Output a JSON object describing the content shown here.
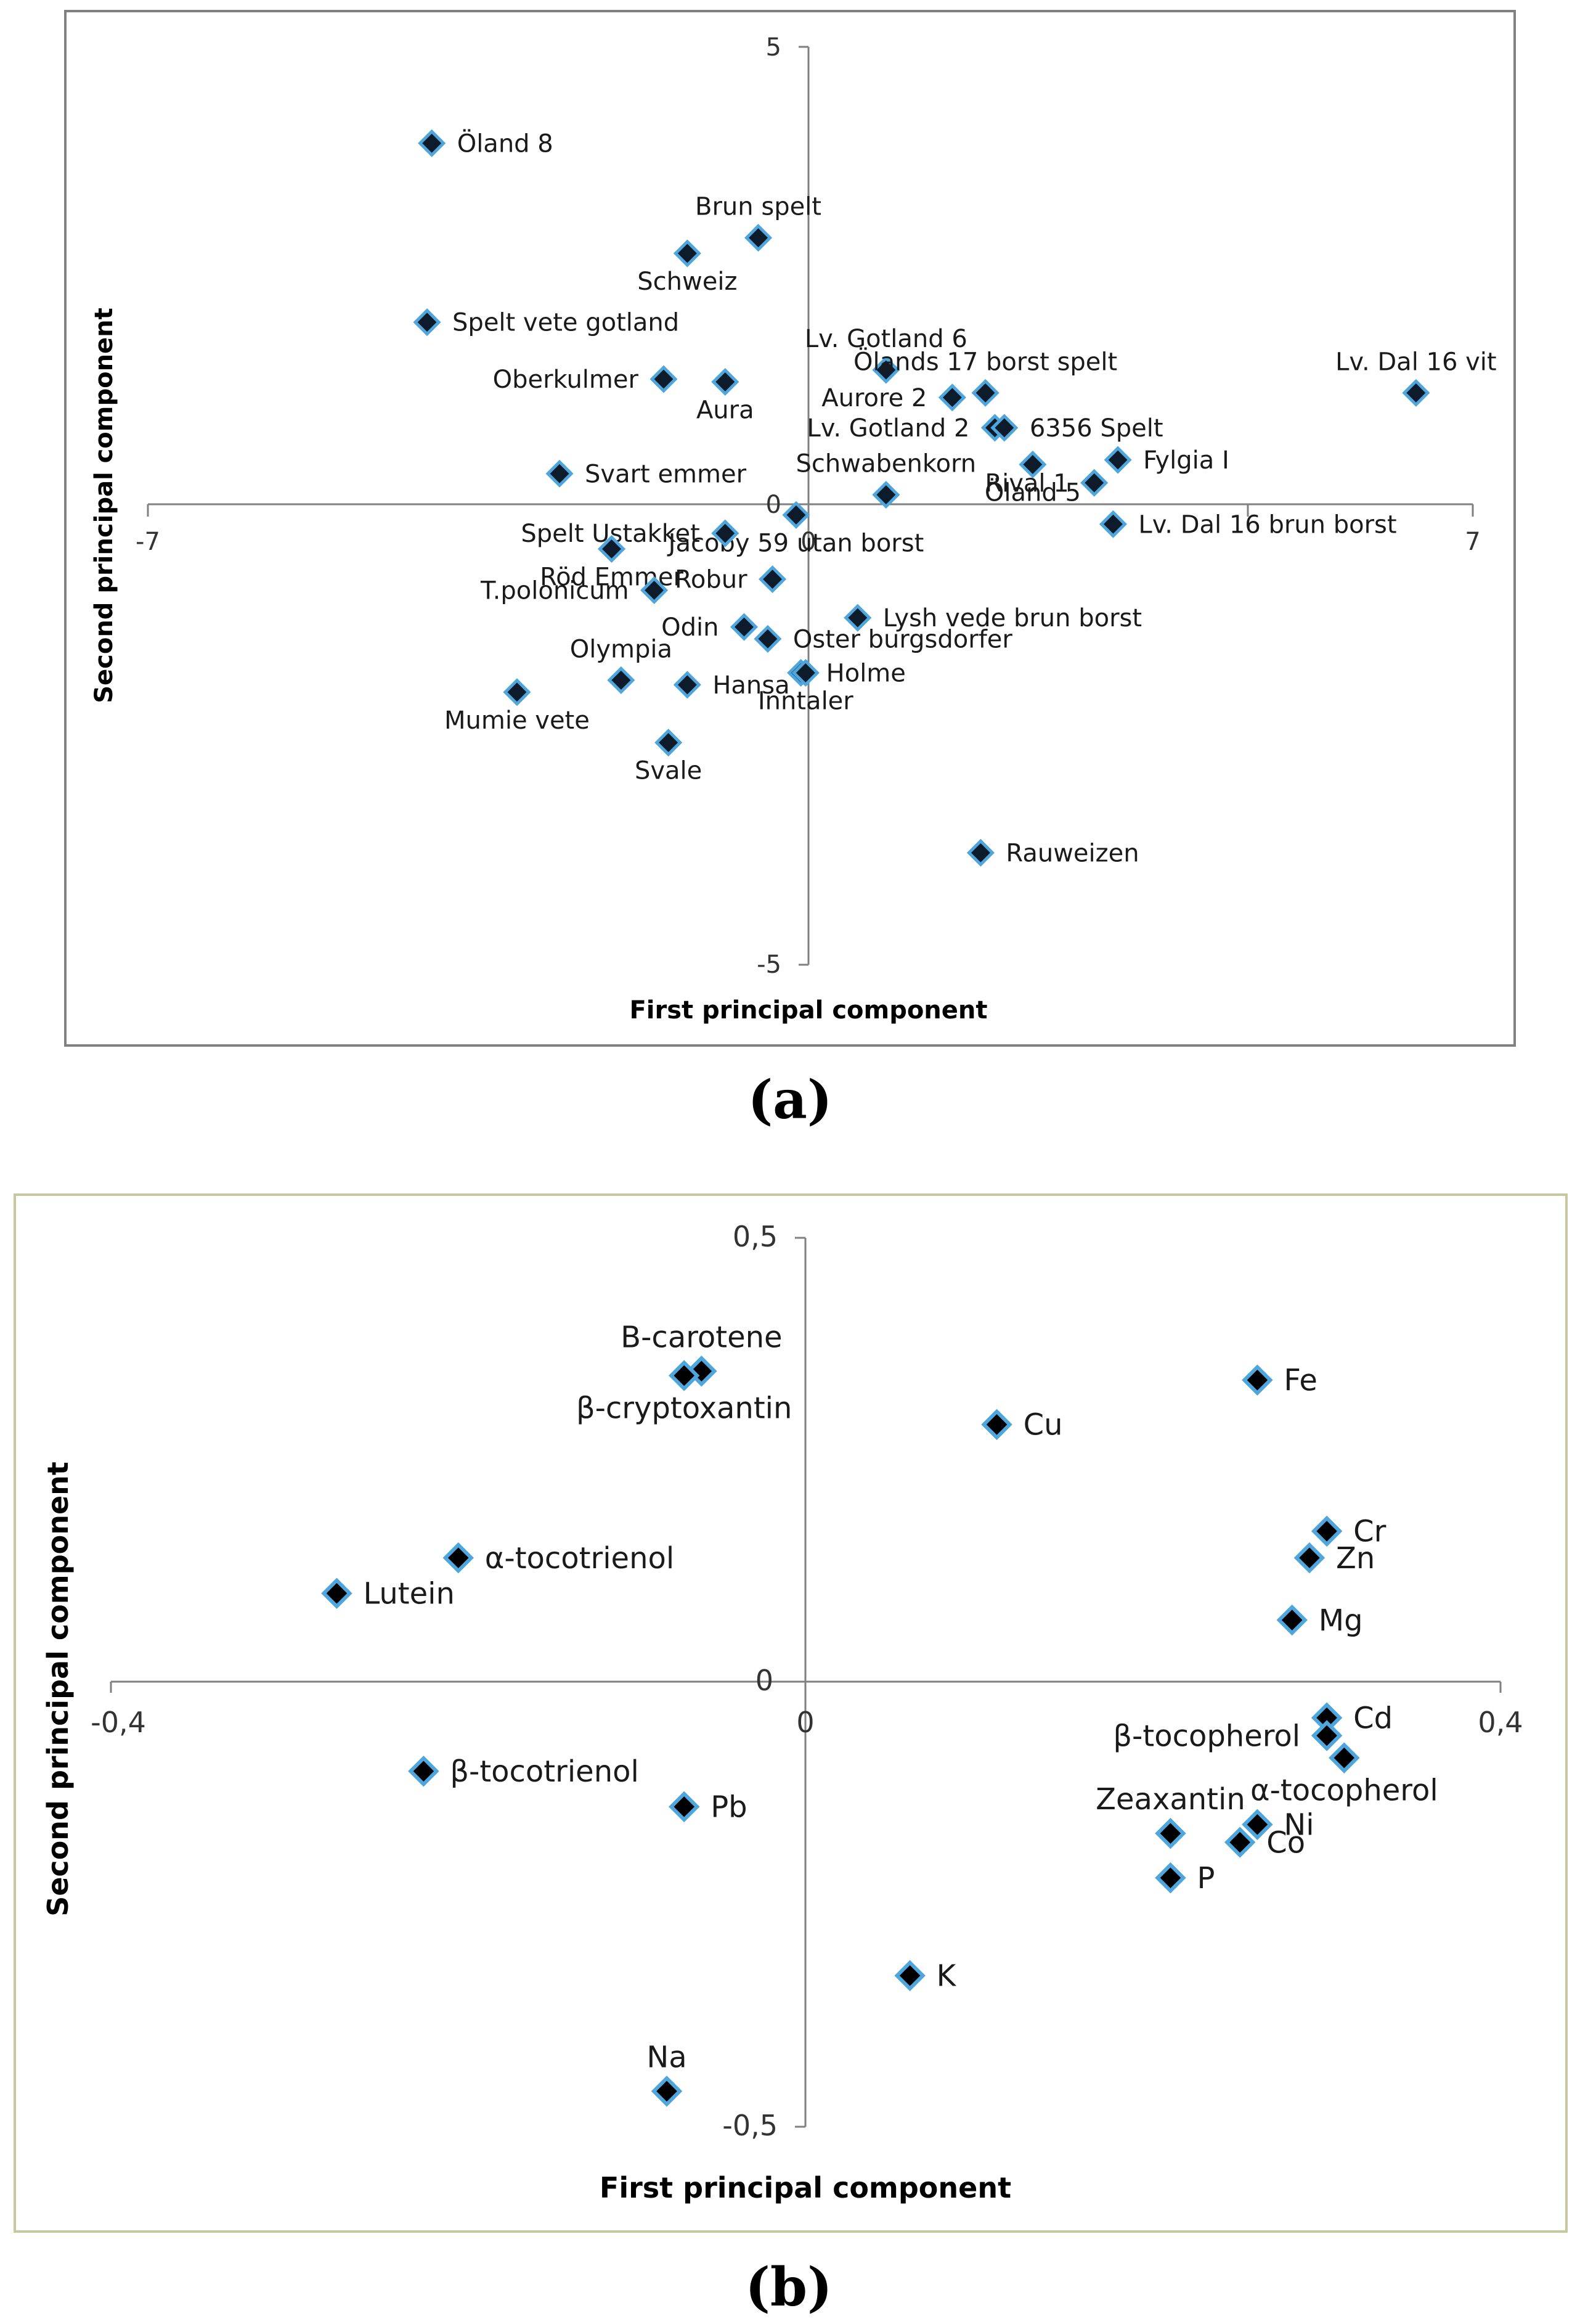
{
  "figure": {
    "caption_a": "(a)",
    "caption_b": "(b)"
  },
  "chart_data": [
    {
      "type": "scatter",
      "title": "",
      "xlabel": "First principal component",
      "ylabel": "Second principal component",
      "xlim": [
        -7,
        7
      ],
      "ylim": [
        -5,
        5
      ],
      "xticks": [
        "-7",
        "0",
        "7"
      ],
      "yticks": [
        "5",
        "0",
        "-5"
      ],
      "points": [
        {
          "label": "Öland 8",
          "x": -4.0,
          "y": 3.95
        },
        {
          "label": "Brun spelt",
          "x": -0.55,
          "y": 2.92
        },
        {
          "label": "Schweiz",
          "x": -1.3,
          "y": 2.75
        },
        {
          "label": "Spelt vete gotland",
          "x": -4.05,
          "y": 2.0
        },
        {
          "label": "Lv. Gotland 6",
          "x": 0.8,
          "y": 1.48
        },
        {
          "label": "Ölands 17 borst spelt",
          "x": 1.85,
          "y": 1.23
        },
        {
          "label": "Lv. Dal 16 vit",
          "x": 6.4,
          "y": 1.23
        },
        {
          "label": "Oberkulmer",
          "x": -1.55,
          "y": 1.38
        },
        {
          "label": "Aura",
          "x": -0.9,
          "y": 1.35
        },
        {
          "label": "Aurore 2",
          "x": 1.5,
          "y": 1.18
        },
        {
          "label": "Lv. Gotland 2",
          "x": 1.95,
          "y": 0.85
        },
        {
          "label": "6356 Spelt",
          "x": 2.05,
          "y": 0.85
        },
        {
          "label": "Fylgia I",
          "x": 3.25,
          "y": 0.5
        },
        {
          "label": "Svart emmer",
          "x": -2.65,
          "y": 0.35
        },
        {
          "label": "Rival 1",
          "x": 3.0,
          "y": 0.25
        },
        {
          "label": "Schwabenkorn",
          "x": 0.8,
          "y": 0.12
        },
        {
          "label": "Lv. Dal 16 brun borst",
          "x": 3.2,
          "y": -0.2
        },
        {
          "label": "Jacoby 59 utan borst",
          "x": -0.15,
          "y": -0.1
        },
        {
          "label": "Öland 5",
          "x": 2.35,
          "y": 0.45
        },
        {
          "label": "Spelt Ustakket",
          "x": -0.9,
          "y": -0.3
        },
        {
          "label": "Röd Emmer",
          "x": -2.1,
          "y": -0.47
        },
        {
          "label": "Robur",
          "x": -0.4,
          "y": -0.8
        },
        {
          "label": "T.polonicum",
          "x": -1.65,
          "y": -0.92
        },
        {
          "label": "Lysh vede brun borst",
          "x": 0.5,
          "y": -1.22
        },
        {
          "label": "Odin",
          "x": -0.7,
          "y": -1.32
        },
        {
          "label": "Oster burgsdorfer",
          "x": -0.45,
          "y": -1.45
        },
        {
          "label": "Olympia",
          "x": -2.0,
          "y": -1.9
        },
        {
          "label": "Holme",
          "x": -0.1,
          "y": -1.82
        },
        {
          "label": "Hansa",
          "x": -1.3,
          "y": -1.95
        },
        {
          "label": "Mumie vete",
          "x": -3.1,
          "y": -2.03
        },
        {
          "label": "Inntaler",
          "x": -0.05,
          "y": -1.82
        },
        {
          "label": "Svale",
          "x": -1.5,
          "y": -2.58
        },
        {
          "label": "Rauweizen",
          "x": 1.8,
          "y": -3.78
        }
      ]
    },
    {
      "type": "scatter",
      "title": "",
      "xlabel": "First principal component",
      "ylabel": "Second principal component",
      "xlim": [
        -0.4,
        0.4
      ],
      "ylim": [
        -0.5,
        0.5
      ],
      "xticks": [
        "-0,4",
        "0",
        "0,4"
      ],
      "yticks": [
        "0,5",
        "0",
        "-0,5"
      ],
      "points": [
        {
          "label": "B-carotene",
          "x": -0.06,
          "y": 0.35
        },
        {
          "label": "β-cryptoxantin",
          "x": -0.07,
          "y": 0.345
        },
        {
          "label": "Fe",
          "x": 0.26,
          "y": 0.34
        },
        {
          "label": "Cu",
          "x": 0.11,
          "y": 0.29
        },
        {
          "label": "Cr",
          "x": 0.3,
          "y": 0.17
        },
        {
          "label": "α-tocotrienol",
          "x": -0.2,
          "y": 0.14
        },
        {
          "label": "Zn",
          "x": 0.29,
          "y": 0.14
        },
        {
          "label": "Lutein",
          "x": -0.27,
          "y": 0.1
        },
        {
          "label": "Mg",
          "x": 0.28,
          "y": 0.07
        },
        {
          "label": "Cd",
          "x": 0.3,
          "y": -0.04
        },
        {
          "label": "β-tocopherol",
          "x": 0.3,
          "y": -0.06
        },
        {
          "label": "α-tocopherol",
          "x": 0.31,
          "y": -0.085
        },
        {
          "label": "β-tocotrienol",
          "x": -0.22,
          "y": -0.1
        },
        {
          "label": "Pb",
          "x": -0.07,
          "y": -0.14
        },
        {
          "label": "Zeaxantin",
          "x": 0.21,
          "y": -0.17
        },
        {
          "label": "Ni",
          "x": 0.26,
          "y": -0.16
        },
        {
          "label": "Co",
          "x": 0.25,
          "y": -0.18
        },
        {
          "label": "P",
          "x": 0.21,
          "y": -0.22
        },
        {
          "label": "K",
          "x": 0.06,
          "y": -0.33
        },
        {
          "label": "Na",
          "x": -0.08,
          "y": -0.46
        }
      ]
    }
  ]
}
